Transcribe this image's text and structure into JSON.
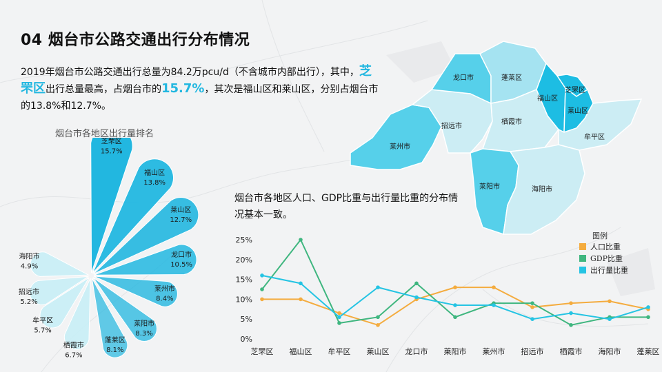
{
  "colors": {
    "accent": "#22b7e0",
    "population": "#f4ac3f",
    "gdp": "#3fb67f",
    "traffic": "#25c4e3",
    "map_dark": "#1dbde3",
    "map_mid": "#56d0ea",
    "map_light": "#a5e3f1",
    "map_pale": "#ccedf4"
  },
  "slide": {
    "title": "04 烟台市公路交通出行分布情况",
    "intro_part1": "2019年烟台市公路交通出行总量为84.2万pcu/d（不含城市内部出行），其中，",
    "intro_hl1": "芝罘区",
    "intro_part2": "出行总量最高，占烟台市的",
    "intro_hl2": "15.7%",
    "intro_part3": "，其次是福山区和莱山区，分别占烟台市的13.8%和12.7%。",
    "note": "烟台市各地区人口、GDP比重与出行量比重的分布情况基本一致。"
  },
  "map": {
    "districts": [
      {
        "name": "龙口市"
      },
      {
        "name": "蓬莱区"
      },
      {
        "name": "福山区"
      },
      {
        "name": "芝罘区"
      },
      {
        "name": "莱山区"
      },
      {
        "name": "招远市"
      },
      {
        "name": "栖霞市"
      },
      {
        "name": "牟平区"
      },
      {
        "name": "莱州市"
      },
      {
        "name": "莱阳市"
      },
      {
        "name": "海阳市"
      }
    ]
  },
  "chart_data": [
    {
      "type": "pie",
      "variant": "nightingale-rose",
      "title": "烟台市各地区出行量排名",
      "categories": [
        "芝罘区",
        "福山区",
        "莱山区",
        "龙口市",
        "莱州市",
        "莱阳市",
        "蓬莱区",
        "栖霞市",
        "牟平区",
        "招远市",
        "海阳市"
      ],
      "values": [
        15.7,
        13.8,
        12.7,
        10.5,
        8.4,
        8.3,
        8.1,
        6.7,
        5.7,
        5.2,
        4.9
      ],
      "labels": [
        "15.7%",
        "13.8%",
        "12.7%",
        "10.5%",
        "8.4%",
        "8.3%",
        "8.1%",
        "6.7%",
        "5.7%",
        "5.2%",
        "4.9%"
      ]
    },
    {
      "type": "line",
      "categories": [
        "芝罘区",
        "福山区",
        "牟平区",
        "莱山区",
        "龙口市",
        "莱阳市",
        "莱州市",
        "招远市",
        "栖霞市",
        "海阳市",
        "蓬莱区"
      ],
      "series": [
        {
          "name": "人口比重",
          "values": [
            10,
            10,
            6.5,
            3.5,
            10,
            13,
            13,
            8,
            9,
            9.5,
            7.5
          ]
        },
        {
          "name": "GDP比重",
          "values": [
            12.5,
            25,
            4,
            5.5,
            14,
            5.5,
            9,
            9,
            3.5,
            5.5,
            5.5
          ]
        },
        {
          "name": "出行量比重",
          "values": [
            16,
            14,
            5.5,
            13,
            10.5,
            8.5,
            8.5,
            5,
            6.5,
            5,
            8
          ]
        }
      ],
      "legend_title": "图例",
      "legend_position": "top-right",
      "ylim": [
        0,
        25
      ],
      "yticks": [
        "0%",
        "5%",
        "10%",
        "15%",
        "20%",
        "25%"
      ]
    }
  ]
}
